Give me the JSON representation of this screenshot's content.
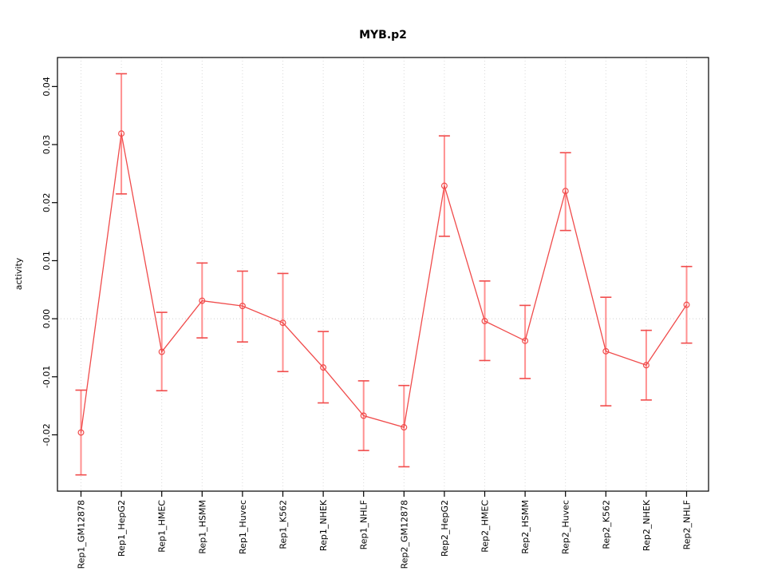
{
  "chart_data": {
    "type": "line",
    "title": "MYB.p2",
    "xlabel": "",
    "ylabel": "activity",
    "categories": [
      "Rep1_GM12878",
      "Rep1_HepG2",
      "Rep1_HMEC",
      "Rep1_HSMM",
      "Rep1_Huvec",
      "Rep1_K562",
      "Rep1_NHEK",
      "Rep1_NHLF",
      "Rep2_GM12878",
      "Rep2_HepG2",
      "Rep2_HMEC",
      "Rep2_HSMM",
      "Rep2_Huvec",
      "Rep2_K562",
      "Rep2_NHEK",
      "Rep2_NHLF"
    ],
    "series": [
      {
        "name": "activity",
        "values": [
          -0.0196,
          0.0319,
          -0.0057,
          0.0031,
          0.0022,
          -0.0007,
          -0.0084,
          -0.0167,
          -0.0187,
          0.0229,
          -0.0004,
          -0.0038,
          0.022,
          -0.0056,
          -0.008,
          0.0024
        ],
        "upper": [
          -0.0123,
          0.0422,
          0.0011,
          0.0096,
          0.0082,
          0.0078,
          -0.0022,
          -0.0107,
          -0.0115,
          0.0315,
          0.0065,
          0.0023,
          0.0286,
          0.0037,
          -0.002,
          0.009
        ],
        "lower": [
          -0.0269,
          0.0215,
          -0.0124,
          -0.0033,
          -0.004,
          -0.0091,
          -0.0145,
          -0.0227,
          -0.0255,
          0.0142,
          -0.0072,
          -0.0103,
          0.0152,
          -0.015,
          -0.014,
          -0.0042
        ]
      }
    ],
    "ylim": [
      -0.0297,
      0.045
    ],
    "yticks": [
      -0.02,
      -0.01,
      0,
      0.01,
      0.02,
      0.03,
      0.04
    ],
    "ytick_labels": [
      "-0.02",
      "-0.01",
      "0.00",
      "0.01",
      "0.02",
      "0.03",
      "0.04"
    ],
    "grid": {
      "vertical_per_category": true,
      "horizontal_zero_line": true,
      "style": "dotted"
    },
    "legend": "none",
    "marker": "open-circle",
    "colors": {
      "series": "#f04b4b",
      "error_bar_shaft": "#ff9090",
      "error_bar_cap": "#f04b4b",
      "grid": "#d9d9d9",
      "zero_line": "#cfcfcf",
      "axis": "#000000",
      "background": "#ffffff"
    }
  }
}
